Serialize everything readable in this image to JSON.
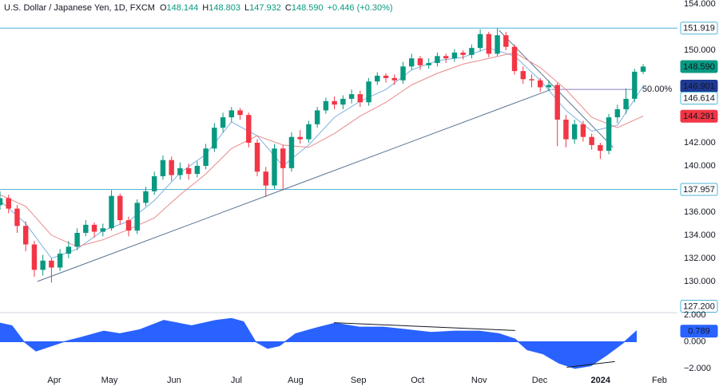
{
  "chart_data": [
    {
      "type": "candlestick",
      "title": "U.S. Dollar / Japanese Yen, 1D, FXCM",
      "quote": [
        {
          "key": "O",
          "value": "148.144"
        },
        {
          "key": "H",
          "value": "148.803"
        },
        {
          "key": "L",
          "value": "147.932"
        },
        {
          "key": "C",
          "value": "148.590"
        }
      ],
      "change": "+0.446 (+0.30%)",
      "up_color": "#089981",
      "down_color": "#f23645",
      "xlim": [
        0,
        237
      ],
      "ylim": [
        127.3,
        154.35
      ],
      "yticks": [
        {
          "value": 154,
          "label": "154.000"
        },
        {
          "value": 150,
          "label": "150.000"
        },
        {
          "value": 142,
          "label": "142.000"
        },
        {
          "value": 140,
          "label": "140.000"
        },
        {
          "value": 136,
          "label": "136.000"
        },
        {
          "value": 134,
          "label": "134.000"
        },
        {
          "value": 132,
          "label": "132.000"
        },
        {
          "value": 130,
          "label": "130.000"
        }
      ],
      "x": [
        0,
        3,
        6,
        9,
        12,
        15,
        18,
        21,
        24,
        27,
        30,
        33,
        36,
        39,
        42,
        45,
        48,
        51,
        54,
        57,
        60,
        63,
        66,
        69,
        72,
        75,
        78,
        81,
        84,
        87,
        90,
        93,
        96,
        99,
        102,
        105,
        108,
        111,
        114,
        117,
        120,
        123,
        126,
        129,
        132,
        135,
        138,
        141,
        144,
        147,
        150,
        153,
        156,
        159,
        162,
        165,
        168,
        171,
        174,
        177,
        180,
        183,
        186,
        189,
        192,
        195,
        198,
        201,
        204,
        207,
        210,
        213,
        216,
        219,
        222,
        225
      ],
      "ohlc": [
        [
          136.6,
          137.8,
          136.2,
          137.2
        ],
        [
          137.2,
          137.5,
          135.9,
          136.3
        ],
        [
          136.3,
          136.6,
          134.2,
          134.8
        ],
        [
          134.8,
          135.2,
          132.6,
          133.2
        ],
        [
          133.2,
          133.5,
          130.4,
          131.0
        ],
        [
          131.0,
          132.3,
          130.5,
          131.8
        ],
        [
          131.8,
          132.0,
          129.9,
          131.2
        ],
        [
          131.2,
          132.8,
          130.9,
          132.4
        ],
        [
          132.4,
          133.5,
          132.0,
          133.0
        ],
        [
          133.0,
          134.6,
          132.7,
          134.2
        ],
        [
          134.2,
          135.3,
          133.9,
          134.9
        ],
        [
          134.9,
          135.1,
          133.8,
          134.3
        ],
        [
          134.3,
          135.0,
          133.9,
          134.6
        ],
        [
          134.6,
          137.9,
          134.4,
          137.4
        ],
        [
          137.4,
          137.6,
          134.9,
          135.3
        ],
        [
          135.3,
          135.6,
          133.9,
          134.4
        ],
        [
          134.4,
          137.1,
          134.1,
          136.8
        ],
        [
          136.8,
          138.2,
          136.5,
          137.8
        ],
        [
          137.8,
          139.5,
          137.5,
          139.1
        ],
        [
          139.1,
          140.9,
          138.8,
          140.5
        ],
        [
          140.5,
          140.8,
          138.7,
          139.2
        ],
        [
          139.2,
          140.3,
          138.8,
          139.8
        ],
        [
          139.8,
          140.2,
          138.8,
          139.3
        ],
        [
          139.3,
          140.4,
          139.0,
          140.0
        ],
        [
          140.0,
          141.9,
          139.7,
          141.5
        ],
        [
          141.5,
          143.7,
          141.2,
          143.3
        ],
        [
          143.3,
          144.6,
          142.9,
          144.2
        ],
        [
          144.2,
          145.1,
          143.8,
          144.8
        ],
        [
          144.8,
          145.0,
          144.0,
          144.4
        ],
        [
          144.4,
          144.6,
          141.6,
          142.0
        ],
        [
          142.0,
          142.3,
          139.1,
          139.5
        ],
        [
          139.5,
          139.9,
          137.3,
          138.3
        ],
        [
          138.3,
          141.9,
          138.0,
          141.5
        ],
        [
          141.5,
          141.8,
          137.9,
          139.8
        ],
        [
          139.8,
          142.9,
          139.5,
          142.5
        ],
        [
          142.5,
          143.1,
          141.9,
          142.3
        ],
        [
          142.3,
          143.9,
          142.0,
          143.6
        ],
        [
          143.6,
          145.1,
          143.3,
          144.8
        ],
        [
          144.8,
          145.9,
          144.5,
          145.6
        ],
        [
          145.6,
          146.0,
          144.9,
          145.3
        ],
        [
          145.3,
          146.1,
          144.9,
          145.8
        ],
        [
          145.8,
          146.6,
          145.4,
          146.2
        ],
        [
          146.2,
          146.5,
          145.1,
          145.5
        ],
        [
          145.5,
          147.6,
          145.2,
          147.3
        ],
        [
          147.3,
          148.1,
          147.0,
          147.8
        ],
        [
          147.8,
          148.0,
          147.2,
          147.6
        ],
        [
          147.6,
          147.9,
          147.0,
          147.4
        ],
        [
          147.4,
          149.0,
          147.1,
          148.6
        ],
        [
          148.6,
          149.7,
          148.3,
          149.3
        ],
        [
          149.3,
          149.5,
          148.3,
          148.7
        ],
        [
          148.7,
          149.3,
          148.4,
          148.9
        ],
        [
          148.9,
          149.8,
          148.6,
          149.5
        ],
        [
          149.5,
          149.7,
          148.9,
          149.3
        ],
        [
          149.3,
          150.1,
          149.0,
          149.8
        ],
        [
          149.8,
          150.0,
          149.2,
          149.6
        ],
        [
          149.6,
          150.5,
          149.3,
          150.2
        ],
        [
          150.2,
          151.8,
          149.9,
          151.4
        ],
        [
          151.4,
          151.6,
          149.4,
          149.7
        ],
        [
          149.7,
          151.9,
          149.5,
          151.3
        ],
        [
          151.3,
          151.6,
          150.0,
          150.3
        ],
        [
          150.3,
          150.5,
          147.9,
          148.2
        ],
        [
          148.2,
          148.6,
          147.1,
          147.5
        ],
        [
          147.5,
          147.9,
          146.8,
          147.4
        ],
        [
          147.4,
          147.6,
          146.4,
          146.8
        ],
        [
          146.8,
          147.4,
          146.5,
          147.0
        ],
        [
          147.0,
          147.2,
          141.7,
          144.0
        ],
        [
          144.0,
          144.4,
          141.6,
          142.3
        ],
        [
          142.3,
          144.0,
          141.9,
          143.6
        ],
        [
          143.6,
          143.9,
          142.1,
          142.5
        ],
        [
          142.5,
          142.8,
          141.4,
          141.8
        ],
        [
          141.8,
          142.0,
          140.6,
          141.3
        ],
        [
          141.3,
          144.5,
          141.0,
          144.2
        ],
        [
          144.2,
          145.3,
          143.7,
          144.9
        ],
        [
          144.9,
          146.7,
          144.5,
          145.8
        ],
        [
          145.8,
          148.4,
          145.5,
          148.144
        ],
        [
          148.144,
          148.803,
          147.932,
          148.59
        ]
      ],
      "lines": [
        {
          "color": "#7fb2e0",
          "x": [
            0,
            9,
            18,
            27,
            36,
            45,
            54,
            63,
            72,
            81,
            90,
            99,
            108,
            117,
            126,
            135,
            144,
            153,
            162,
            171,
            180,
            189,
            198,
            207,
            216,
            225
          ],
          "values": [
            137.0,
            135.0,
            132.0,
            132.8,
            134.4,
            135.2,
            137.0,
            139.4,
            141.0,
            143.8,
            142.6,
            140.0,
            141.8,
            144.2,
            145.6,
            146.6,
            148.3,
            149.1,
            149.4,
            150.2,
            149.5,
            147.4,
            144.8,
            143.0,
            143.5,
            146.9
          ]
        },
        {
          "color": "#e88a8a",
          "x": [
            0,
            9,
            18,
            27,
            36,
            45,
            54,
            63,
            72,
            81,
            90,
            99,
            108,
            117,
            126,
            135,
            144,
            153,
            162,
            171,
            180,
            189,
            198,
            207,
            216,
            225
          ],
          "values": [
            137.5,
            136.5,
            134.0,
            133.0,
            133.6,
            134.5,
            135.5,
            137.5,
            139.3,
            141.5,
            142.6,
            141.8,
            141.6,
            142.8,
            144.3,
            145.5,
            147.0,
            148.0,
            148.8,
            149.3,
            149.8,
            148.5,
            146.6,
            144.2,
            143.3,
            144.3
          ]
        }
      ],
      "levels": [
        {
          "value": 151.919,
          "label": "151.919",
          "color": "#4db6d8"
        },
        {
          "value": 137.957,
          "label": "137.957",
          "color": "#4db6d8"
        }
      ],
      "trendlines": [
        {
          "color": "#5b7391",
          "x": [
            13.1,
            192.7
          ],
          "values": [
            130.0,
            146.6
          ]
        },
        {
          "color": "#5b7391",
          "x": [
            174.6,
            214.5
          ],
          "values": [
            151.72,
            141.6
          ]
        }
      ],
      "fib": {
        "x": [
          193,
          223
        ],
        "value": 146.614,
        "label": "50.00%",
        "price_label": "146.614",
        "color": "#8e7cc3"
      },
      "price_tags": [
        {
          "value": 148.59,
          "label": "148.590",
          "color": "#089981"
        },
        {
          "value": 146.901,
          "label": "146.901",
          "color": "#1f3a93"
        },
        {
          "value": 144.291,
          "label": "144.291",
          "color": "#f23645"
        },
        {
          "value": 127.2,
          "label": "127.200",
          "color": null
        }
      ]
    },
    {
      "type": "area",
      "color": "#2962ff",
      "xlim": [
        0,
        237
      ],
      "ylim": [
        -2.48,
        2.18
      ],
      "yticks": [
        {
          "value": 2,
          "label": "2.000"
        },
        {
          "value": 0,
          "label": "0.000"
        },
        {
          "value": -2,
          "label": "−2.000"
        }
      ],
      "xticks": [
        {
          "value": 19,
          "label": "Apr"
        },
        {
          "value": 38.3,
          "label": "May"
        },
        {
          "value": 60.9,
          "label": "Jun"
        },
        {
          "value": 82.7,
          "label": "Jul"
        },
        {
          "value": 103.4,
          "label": "Aug"
        },
        {
          "value": 125.4,
          "label": "Sep"
        },
        {
          "value": 146.1,
          "label": "Oct"
        },
        {
          "value": 167.6,
          "label": "Nov"
        },
        {
          "value": 188.8,
          "label": "Dec"
        },
        {
          "value": 210.1,
          "label": "2024",
          "bold": true
        },
        {
          "value": 230.7,
          "label": "Feb"
        }
      ],
      "x": [
        0,
        4.2,
        8.4,
        12.6,
        16.8,
        22.3,
        27.9,
        36.3,
        41.9,
        48.9,
        57.3,
        67,
        75.4,
        81,
        85.2,
        89.4,
        93.6,
        97.8,
        103.4,
        111.7,
        117.3,
        125.7,
        134.1,
        142.5,
        150.8,
        159.2,
        167.6,
        174.6,
        180.2,
        184.4,
        189.9,
        195.5,
        201.1,
        206.7,
        212.3,
        217.9,
        222.6
      ],
      "values": [
        1.4,
        1.2,
        0.0,
        -0.7,
        -0.4,
        0,
        0.3,
        0.8,
        0.6,
        0.9,
        1.6,
        1.2,
        1.6,
        1.75,
        1.5,
        0.0,
        -0.5,
        -0.3,
        0.6,
        1.1,
        1.4,
        1.1,
        1.1,
        0.9,
        0.7,
        0.8,
        0.8,
        0.6,
        0.2,
        -0.6,
        -0.9,
        -1.6,
        -2.0,
        -1.8,
        -1.0,
        -0.1,
        0.789
      ],
      "tag": {
        "value": 0.789,
        "label": "0.789"
      },
      "trendlines": [
        {
          "color": "#131722",
          "x": [
            116.8,
            180.2
          ],
          "values": [
            1.43,
            0.84
          ]
        },
        {
          "color": "#131722",
          "x": [
            198.3,
            215.1
          ],
          "values": [
            -1.91,
            -1.49
          ]
        }
      ]
    }
  ]
}
